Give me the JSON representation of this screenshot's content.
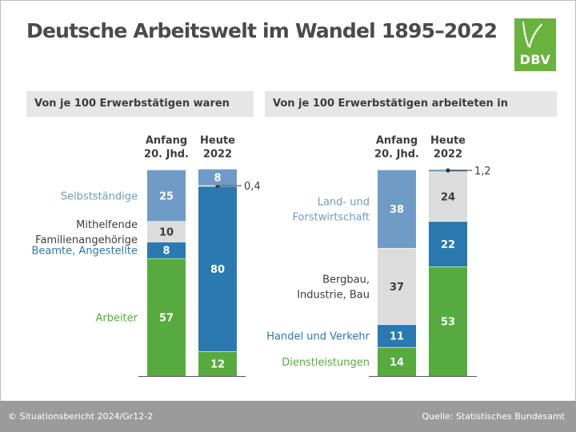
{
  "header": {
    "title": "Deutsche Arbeitswelt im Wandel 1895–2022",
    "logo_text": "DBV"
  },
  "footer": {
    "source_left": "© Situationsbericht 2024/Gr12-2",
    "source_right": "Quelle: Statistisches Bundesamt"
  },
  "colors": {
    "light_blue": "#6f9bc6",
    "gray": "#dcdcdc",
    "blue": "#2a79b1",
    "green": "#57ab3e",
    "text_gray": "#3c3c3c"
  },
  "chart_data": [
    {
      "type": "bar",
      "stacked": true,
      "title": "Von je 100 Erwerbstätigen waren",
      "categories": [
        "Anfang\n20. Jhd.",
        "Heute\n2022"
      ],
      "series": [
        {
          "name": "Arbeiter",
          "color": "#57ab3e",
          "values": [
            57,
            12
          ]
        },
        {
          "name": "Beamte, Angestellte",
          "color": "#2a79b1",
          "values": [
            8,
            80
          ]
        },
        {
          "name": "Mithelfende\nFamilienangehörige",
          "color": "#dcdcdc",
          "values": [
            10,
            0.4
          ]
        },
        {
          "name": "Selbstständige",
          "color": "#6f9bc6",
          "values": [
            25,
            8
          ]
        }
      ],
      "value_labels": [
        [
          "57",
          "12"
        ],
        [
          "8",
          "80"
        ],
        [
          "10",
          "0,4"
        ],
        [
          "25",
          "8"
        ]
      ],
      "ylim": [
        0,
        100
      ]
    },
    {
      "type": "bar",
      "stacked": true,
      "title": "Von je 100 Erwerbstätigen arbeiteten in",
      "categories": [
        "Anfang\n20. Jhd.",
        "Heute\n2022"
      ],
      "series": [
        {
          "name": "Dienstleistungen",
          "color": "#57ab3e",
          "values": [
            14,
            53
          ]
        },
        {
          "name": "Handel und Verkehr",
          "color": "#2a79b1",
          "values": [
            11,
            22
          ]
        },
        {
          "name": "Bergbau,\nIndustrie, Bau",
          "color": "#dcdcdc",
          "values": [
            37,
            24
          ]
        },
        {
          "name": "Land- und\nForstwirtschaft",
          "color": "#6f9bc6",
          "values": [
            38,
            1.2
          ]
        }
      ],
      "value_labels": [
        [
          "14",
          "53"
        ],
        [
          "11",
          "22"
        ],
        [
          "37",
          "24"
        ],
        [
          "38",
          "1,2"
        ]
      ],
      "ylim": [
        0,
        100
      ]
    }
  ]
}
